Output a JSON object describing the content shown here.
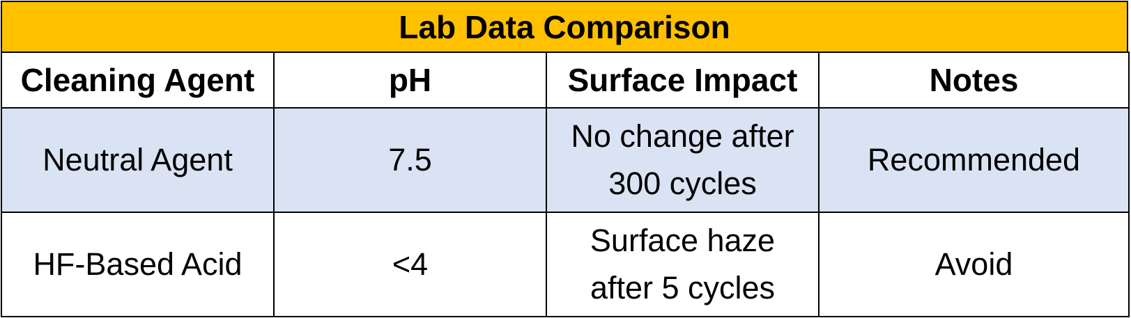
{
  "title": "Lab Data Comparison",
  "colors": {
    "title_bg": "#ffc000",
    "shaded_row_bg": "#dae3f3",
    "border": "#000000"
  },
  "table": {
    "headers": [
      "Cleaning Agent",
      "pH",
      "Surface Impact",
      "Notes"
    ],
    "rows": [
      {
        "agent": "Neutral Agent",
        "ph": "7.5",
        "impact_line1": "No change after",
        "impact_line2": "300 cycles",
        "notes": "Recommended"
      },
      {
        "agent": "HF-Based Acid",
        "ph": "<4",
        "impact_line1": "Surface haze",
        "impact_line2": "after 5 cycles",
        "notes": "Avoid"
      }
    ]
  }
}
